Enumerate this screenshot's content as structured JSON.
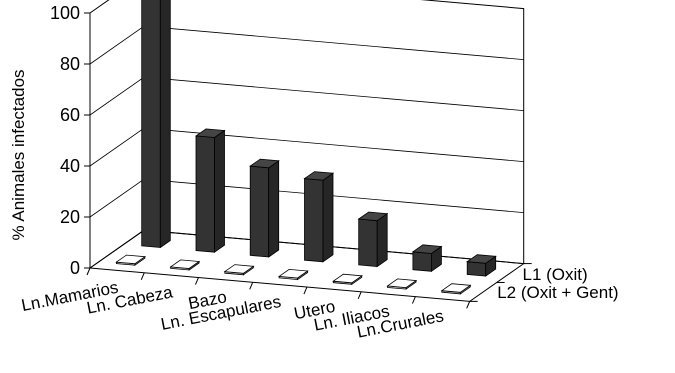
{
  "chart_data": {
    "type": "bar",
    "categories": [
      "Ln.Mamarios",
      "Ln. Cabeza",
      "Bazo",
      "Ln. Escapulares",
      "Utero",
      "Ln. Iliacos",
      "Ln.Crurales"
    ],
    "series": [
      {
        "name": "L1 (Oxit)",
        "values": [
          100,
          45,
          35,
          32,
          18,
          7,
          5
        ],
        "color": "#333333"
      },
      {
        "name": "L2 (Oxit + Gent)",
        "values": [
          0,
          0,
          0,
          0,
          0,
          0,
          0
        ],
        "color": "#c0c0c0"
      }
    ],
    "title": "",
    "xlabel": "",
    "ylabel": "% Animales infectados",
    "ylim": [
      0,
      100
    ],
    "yticks": [
      "0",
      "20",
      "40",
      "60",
      "80",
      "100"
    ],
    "grid": true,
    "legend": "series labels on right depth axis"
  }
}
